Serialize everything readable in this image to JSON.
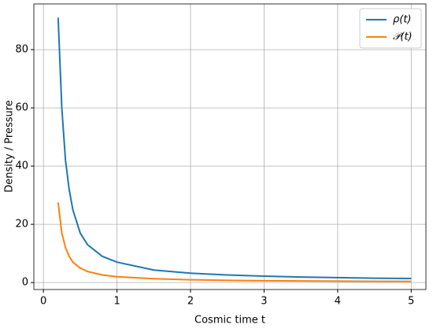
{
  "chart_data": {
    "type": "line",
    "x_label": "Cosmic time t",
    "y_label": "Density / Pressure",
    "x": [
      0.2,
      0.25,
      0.3,
      0.35,
      0.4,
      0.5,
      0.6,
      0.8,
      1,
      1.5,
      2,
      2.5,
      3,
      3.5,
      4,
      4.5,
      5
    ],
    "series": [
      {
        "name": "ρ(t)",
        "color": "#1f77b4",
        "values": [
          91,
          60,
          42,
          32,
          25,
          17,
          13,
          9,
          7,
          4.3,
          3.2,
          2.6,
          2.2,
          1.9,
          1.7,
          1.5,
          1.4
        ]
      },
      {
        "name": "𝒫(t)",
        "color": "#ff7f0e",
        "values": [
          27.5,
          17,
          12,
          9,
          7,
          5,
          3.8,
          2.6,
          2,
          1.3,
          0.95,
          0.75,
          0.62,
          0.53,
          0.47,
          0.42,
          0.38
        ]
      }
    ],
    "xlim": [
      -0.13,
      5.2
    ],
    "ylim": [
      -2.4,
      95.7
    ],
    "xticks": [
      0,
      1,
      2,
      3,
      4,
      5
    ],
    "yticks": [
      0,
      20,
      40,
      60,
      80
    ],
    "grid": true,
    "legend": "upper right"
  }
}
